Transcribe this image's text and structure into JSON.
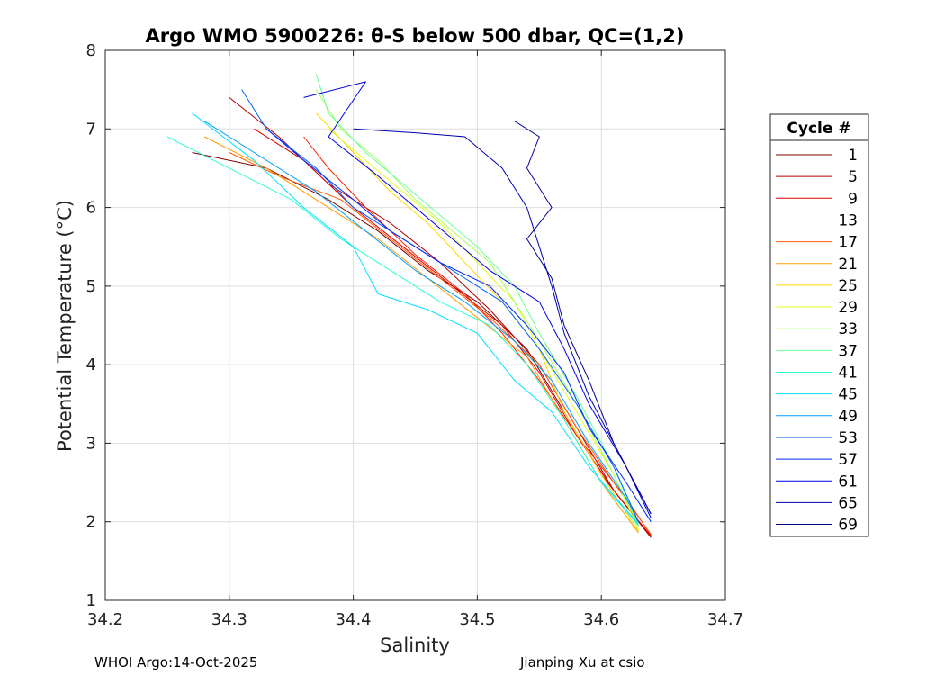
{
  "chart_data": {
    "type": "line",
    "title": "Argo WMO 5900226: θ-S below 500 dbar,  QC=(1,2)",
    "xlabel": "Salinity",
    "ylabel": "Potential Temperature (°C)",
    "xlim": [
      34.2,
      34.7
    ],
    "ylim": [
      1,
      8
    ],
    "xticks": [
      "34.2",
      "34.3",
      "34.4",
      "34.5",
      "34.6",
      "34.7"
    ],
    "yticks": [
      "1",
      "2",
      "3",
      "4",
      "5",
      "6",
      "7",
      "8"
    ],
    "grid": true,
    "legend": {
      "title": "Cycle #",
      "placement": "outside-right",
      "entries": [
        {
          "label": "1",
          "color": "#7f0000"
        },
        {
          "label": "5",
          "color": "#b30000"
        },
        {
          "label": "9",
          "color": "#e00000"
        },
        {
          "label": "13",
          "color": "#ff2000"
        },
        {
          "label": "17",
          "color": "#ff5a00"
        },
        {
          "label": "21",
          "color": "#ff9a00"
        },
        {
          "label": "25",
          "color": "#ffd800"
        },
        {
          "label": "29",
          "color": "#e4ff1b"
        },
        {
          "label": "33",
          "color": "#a6ff59"
        },
        {
          "label": "37",
          "color": "#68ff97"
        },
        {
          "label": "41",
          "color": "#2affd5"
        },
        {
          "label": "45",
          "color": "#00e0ff"
        },
        {
          "label": "49",
          "color": "#00a2ff"
        },
        {
          "label": "53",
          "color": "#0064ff"
        },
        {
          "label": "57",
          "color": "#0026ff"
        },
        {
          "label": "61",
          "color": "#0000e8"
        },
        {
          "label": "65",
          "color": "#0000b0"
        },
        {
          "label": "69",
          "color": "#00008f"
        }
      ]
    },
    "series": [
      {
        "name": "1",
        "color": "#7f0000",
        "points": [
          [
            34.27,
            6.7
          ],
          [
            34.33,
            6.5
          ],
          [
            34.38,
            6.1
          ],
          [
            34.42,
            5.7
          ],
          [
            34.46,
            5.2
          ],
          [
            34.5,
            4.8
          ],
          [
            34.54,
            4.2
          ],
          [
            34.57,
            3.4
          ],
          [
            34.6,
            2.6
          ],
          [
            34.64,
            1.8
          ]
        ]
      },
      {
        "name": "5",
        "color": "#b30000",
        "points": [
          [
            34.3,
            7.4
          ],
          [
            34.34,
            6.9
          ],
          [
            34.38,
            6.3
          ],
          [
            34.43,
            5.8
          ],
          [
            34.47,
            5.3
          ],
          [
            34.51,
            4.7
          ],
          [
            34.55,
            4.0
          ],
          [
            34.58,
            3.2
          ],
          [
            34.61,
            2.4
          ],
          [
            34.64,
            1.82
          ]
        ]
      },
      {
        "name": "9",
        "color": "#e00000",
        "points": [
          [
            34.32,
            7.0
          ],
          [
            34.36,
            6.6
          ],
          [
            34.4,
            6.0
          ],
          [
            34.44,
            5.5
          ],
          [
            34.48,
            5.0
          ],
          [
            34.52,
            4.5
          ],
          [
            34.55,
            3.9
          ],
          [
            34.58,
            3.1
          ],
          [
            34.61,
            2.4
          ],
          [
            34.64,
            1.81
          ]
        ]
      },
      {
        "name": "13",
        "color": "#ff2000",
        "points": [
          [
            34.36,
            6.9
          ],
          [
            34.38,
            6.5
          ],
          [
            34.41,
            6.0
          ],
          [
            34.45,
            5.4
          ],
          [
            34.49,
            4.9
          ],
          [
            34.52,
            4.4
          ],
          [
            34.55,
            3.8
          ],
          [
            34.58,
            3.1
          ],
          [
            34.62,
            2.3
          ],
          [
            34.64,
            1.83
          ]
        ]
      },
      {
        "name": "17",
        "color": "#ff5a00",
        "points": [
          [
            34.3,
            6.7
          ],
          [
            34.34,
            6.4
          ],
          [
            34.39,
            6.1
          ],
          [
            34.43,
            5.6
          ],
          [
            34.47,
            5.1
          ],
          [
            34.51,
            4.6
          ],
          [
            34.55,
            4.0
          ],
          [
            34.58,
            3.2
          ],
          [
            34.61,
            2.5
          ],
          [
            34.64,
            1.84
          ]
        ]
      },
      {
        "name": "21",
        "color": "#ff9a00",
        "points": [
          [
            34.28,
            6.9
          ],
          [
            34.33,
            6.5
          ],
          [
            34.38,
            6.0
          ],
          [
            34.42,
            5.6
          ],
          [
            34.46,
            5.1
          ],
          [
            34.5,
            4.6
          ],
          [
            34.54,
            4.1
          ],
          [
            34.57,
            3.3
          ],
          [
            34.6,
            2.5
          ],
          [
            34.63,
            1.86
          ]
        ]
      },
      {
        "name": "25",
        "color": "#ffd800",
        "points": [
          [
            34.37,
            7.2
          ],
          [
            34.4,
            6.7
          ],
          [
            34.43,
            6.2
          ],
          [
            34.46,
            5.8
          ],
          [
            34.49,
            5.3
          ],
          [
            34.52,
            4.8
          ],
          [
            34.55,
            4.2
          ],
          [
            34.57,
            3.4
          ],
          [
            34.6,
            2.6
          ],
          [
            34.63,
            1.88
          ]
        ]
      },
      {
        "name": "29",
        "color": "#e4ff1b",
        "points": [
          [
            34.38,
            7.0
          ],
          [
            34.41,
            6.6
          ],
          [
            34.44,
            6.2
          ],
          [
            34.47,
            5.8
          ],
          [
            34.5,
            5.3
          ],
          [
            34.53,
            4.8
          ],
          [
            34.55,
            4.2
          ],
          [
            34.58,
            3.4
          ],
          [
            34.61,
            2.6
          ],
          [
            34.63,
            1.9
          ]
        ]
      },
      {
        "name": "33",
        "color": "#a6ff59",
        "points": [
          [
            34.37,
            7.5
          ],
          [
            34.39,
            7.0
          ],
          [
            34.42,
            6.6
          ],
          [
            34.45,
            6.1
          ],
          [
            34.48,
            5.7
          ],
          [
            34.51,
            5.3
          ],
          [
            34.53,
            4.8
          ],
          [
            34.55,
            4.3
          ],
          [
            34.58,
            3.5
          ],
          [
            34.61,
            2.6
          ],
          [
            34.63,
            1.95
          ]
        ]
      },
      {
        "name": "37",
        "color": "#68ff97",
        "points": [
          [
            34.37,
            7.7
          ],
          [
            34.38,
            7.2
          ],
          [
            34.41,
            6.7
          ],
          [
            34.44,
            6.3
          ],
          [
            34.47,
            5.9
          ],
          [
            34.5,
            5.5
          ],
          [
            34.53,
            5.0
          ],
          [
            34.55,
            4.4
          ],
          [
            34.58,
            3.6
          ],
          [
            34.61,
            2.7
          ],
          [
            34.63,
            1.95
          ]
        ]
      },
      {
        "name": "41",
        "color": "#2affd5",
        "points": [
          [
            34.25,
            6.9
          ],
          [
            34.3,
            6.5
          ],
          [
            34.35,
            6.1
          ],
          [
            34.39,
            5.6
          ],
          [
            34.43,
            5.2
          ],
          [
            34.47,
            4.8
          ],
          [
            34.51,
            4.5
          ],
          [
            34.54,
            4.0
          ],
          [
            34.57,
            3.3
          ],
          [
            34.6,
            2.5
          ],
          [
            34.63,
            1.95
          ]
        ]
      },
      {
        "name": "45",
        "color": "#00e0ff",
        "points": [
          [
            34.27,
            7.2
          ],
          [
            34.32,
            6.6
          ],
          [
            34.36,
            6.0
          ],
          [
            34.4,
            5.5
          ],
          [
            34.42,
            4.9
          ],
          [
            34.46,
            4.7
          ],
          [
            34.5,
            4.4
          ],
          [
            34.53,
            3.8
          ],
          [
            34.56,
            3.4
          ],
          [
            34.59,
            2.7
          ],
          [
            34.63,
            1.97
          ]
        ]
      },
      {
        "name": "49",
        "color": "#00a2ff",
        "points": [
          [
            34.28,
            7.1
          ],
          [
            34.33,
            6.6
          ],
          [
            34.37,
            6.2
          ],
          [
            34.41,
            5.7
          ],
          [
            34.45,
            5.2
          ],
          [
            34.49,
            4.8
          ],
          [
            34.53,
            4.3
          ],
          [
            34.56,
            3.8
          ],
          [
            34.59,
            3.0
          ],
          [
            34.62,
            2.3
          ],
          [
            34.63,
            2.0
          ]
        ]
      },
      {
        "name": "53",
        "color": "#0064ff",
        "points": [
          [
            34.31,
            7.5
          ],
          [
            34.33,
            7.0
          ],
          [
            34.37,
            6.5
          ],
          [
            34.4,
            6.0
          ],
          [
            34.44,
            5.6
          ],
          [
            34.48,
            5.2
          ],
          [
            34.52,
            4.8
          ],
          [
            34.55,
            4.2
          ],
          [
            34.58,
            3.5
          ],
          [
            34.61,
            2.7
          ],
          [
            34.63,
            2.0
          ]
        ]
      },
      {
        "name": "57",
        "color": "#0026ff",
        "points": [
          [
            34.33,
            7.0
          ],
          [
            34.36,
            6.6
          ],
          [
            34.4,
            6.1
          ],
          [
            34.43,
            5.7
          ],
          [
            34.47,
            5.3
          ],
          [
            34.51,
            5.0
          ],
          [
            34.54,
            4.5
          ],
          [
            34.57,
            3.9
          ],
          [
            34.59,
            3.2
          ],
          [
            34.62,
            2.5
          ],
          [
            34.64,
            2.0
          ]
        ]
      },
      {
        "name": "61",
        "color": "#0000e8",
        "points": [
          [
            34.36,
            7.4
          ],
          [
            34.41,
            7.6
          ],
          [
            34.38,
            6.9
          ],
          [
            34.42,
            6.4
          ],
          [
            34.45,
            6.0
          ],
          [
            34.48,
            5.6
          ],
          [
            34.51,
            5.2
          ],
          [
            34.55,
            4.8
          ],
          [
            34.57,
            4.2
          ],
          [
            34.59,
            3.5
          ],
          [
            34.62,
            2.7
          ],
          [
            34.64,
            2.05
          ]
        ]
      },
      {
        "name": "65",
        "color": "#0000b0",
        "points": [
          [
            34.4,
            7.0
          ],
          [
            34.45,
            6.95
          ],
          [
            34.49,
            6.9
          ],
          [
            34.52,
            6.5
          ],
          [
            34.54,
            6.0
          ],
          [
            34.55,
            5.5
          ],
          [
            34.56,
            5.0
          ],
          [
            34.57,
            4.4
          ],
          [
            34.59,
            3.6
          ],
          [
            34.62,
            2.7
          ],
          [
            34.64,
            2.1
          ]
        ]
      },
      {
        "name": "69",
        "color": "#00008f",
        "points": [
          [
            34.53,
            7.1
          ],
          [
            34.55,
            6.9
          ],
          [
            34.54,
            6.5
          ],
          [
            34.56,
            6.0
          ],
          [
            34.54,
            5.6
          ],
          [
            34.56,
            5.1
          ],
          [
            34.57,
            4.5
          ],
          [
            34.59,
            3.8
          ],
          [
            34.61,
            3.0
          ],
          [
            34.63,
            2.4
          ],
          [
            34.64,
            2.1
          ]
        ]
      }
    ]
  },
  "footer": {
    "left": "WHOI Argo:14-Oct-2025",
    "right": "Jianping Xu at csio"
  }
}
